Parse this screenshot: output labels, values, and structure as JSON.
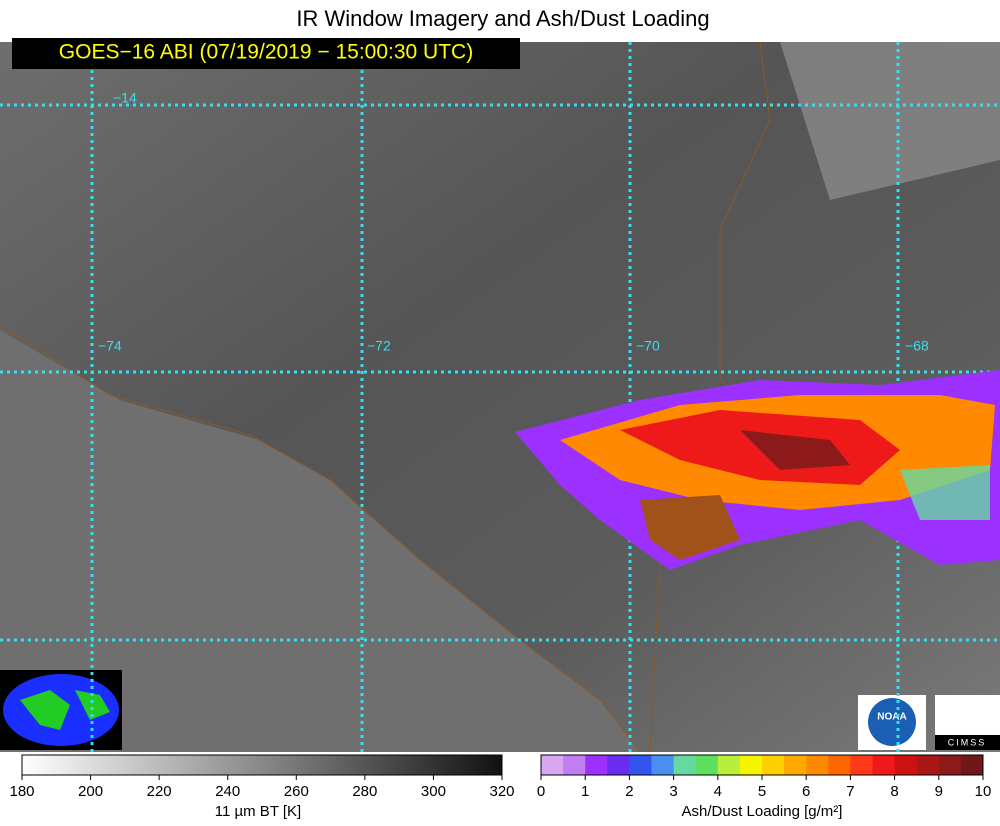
{
  "header": {
    "title": "IR Window Imagery and Ash/Dust Loading",
    "timestamp": "GOES−16 ABI (07/19/2019 − 15:00:30 UTC)"
  },
  "map": {
    "lat_labels": [
      "−14"
    ],
    "lon_labels": [
      "−74",
      "−72",
      "−70",
      "−68"
    ]
  },
  "logos": {
    "noaa": "NOAA",
    "cimss": "CIMSS"
  },
  "bt_colorbar": {
    "ticks": [
      180,
      200,
      220,
      240,
      260,
      280,
      300,
      320
    ],
    "label": "11 µm BT [K]"
  },
  "ash_colorbar": {
    "ticks": [
      0,
      1,
      2,
      3,
      4,
      5,
      6,
      7,
      8,
      9,
      10
    ],
    "label": "Ash/Dust Loading [g/m²]",
    "colors": [
      "#d9a6f2",
      "#c07ef0",
      "#9b30ff",
      "#6a2cf0",
      "#3355ee",
      "#4a8ff0",
      "#66d9a0",
      "#5de05d",
      "#b9ef3a",
      "#f5f500",
      "#ffd000",
      "#ffa800",
      "#ff8a00",
      "#ff6600",
      "#ff3a1a",
      "#ee1a1a",
      "#cc1111",
      "#aa1515",
      "#8c1a1a",
      "#701818"
    ]
  }
}
